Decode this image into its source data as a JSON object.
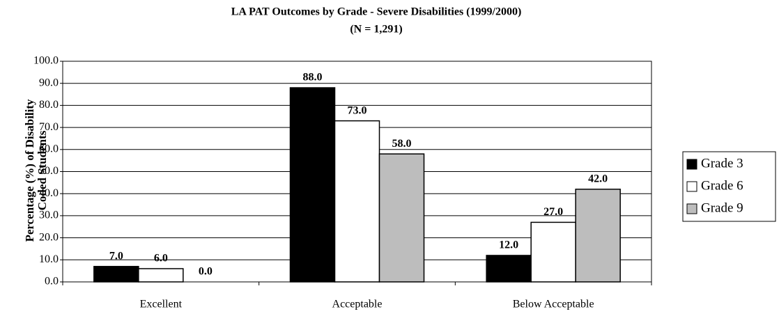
{
  "chart_data": {
    "type": "bar",
    "title": "LA PAT Outcomes by Grade - Severe Disabilities (1999/2000)",
    "subtitle": "(N = 1,291)",
    "y_label": [
      "Percentage (%) of Disability",
      "Coded Students"
    ],
    "categories": [
      "Excellent",
      "Acceptable",
      "Below Acceptable"
    ],
    "series": [
      {
        "name": "Grade 3",
        "color": "#000000",
        "values": [
          7,
          88,
          12
        ],
        "value_labels": [
          "7.0",
          "88.0",
          "12.0"
        ]
      },
      {
        "name": "Grade 6",
        "color": "#ffffff",
        "values": [
          6,
          73,
          27
        ],
        "value_labels": [
          "6.0",
          "73.0",
          "27.0"
        ]
      },
      {
        "name": "Grade 9",
        "color": "#bdbdbd",
        "values": [
          0,
          58,
          42
        ],
        "value_labels": [
          "0.0",
          "58.0",
          "42.0"
        ]
      }
    ],
    "ylim": [
      0,
      100
    ],
    "yticks": [
      {
        "value": 0,
        "label": "0.0"
      },
      {
        "value": 10,
        "label": "10.0"
      },
      {
        "value": 20,
        "label": "20.0"
      },
      {
        "value": 30,
        "label": "30.0"
      },
      {
        "value": 40,
        "label": "40.0"
      },
      {
        "value": 50,
        "label": "50.0"
      },
      {
        "value": 60,
        "label": "60.0"
      },
      {
        "value": 70,
        "label": "70.0"
      },
      {
        "value": 80,
        "label": "80.0"
      },
      {
        "value": 90,
        "label": "90.0"
      },
      {
        "value": 100,
        "label": "100.0"
      }
    ],
    "grid": true,
    "legend": "right"
  }
}
